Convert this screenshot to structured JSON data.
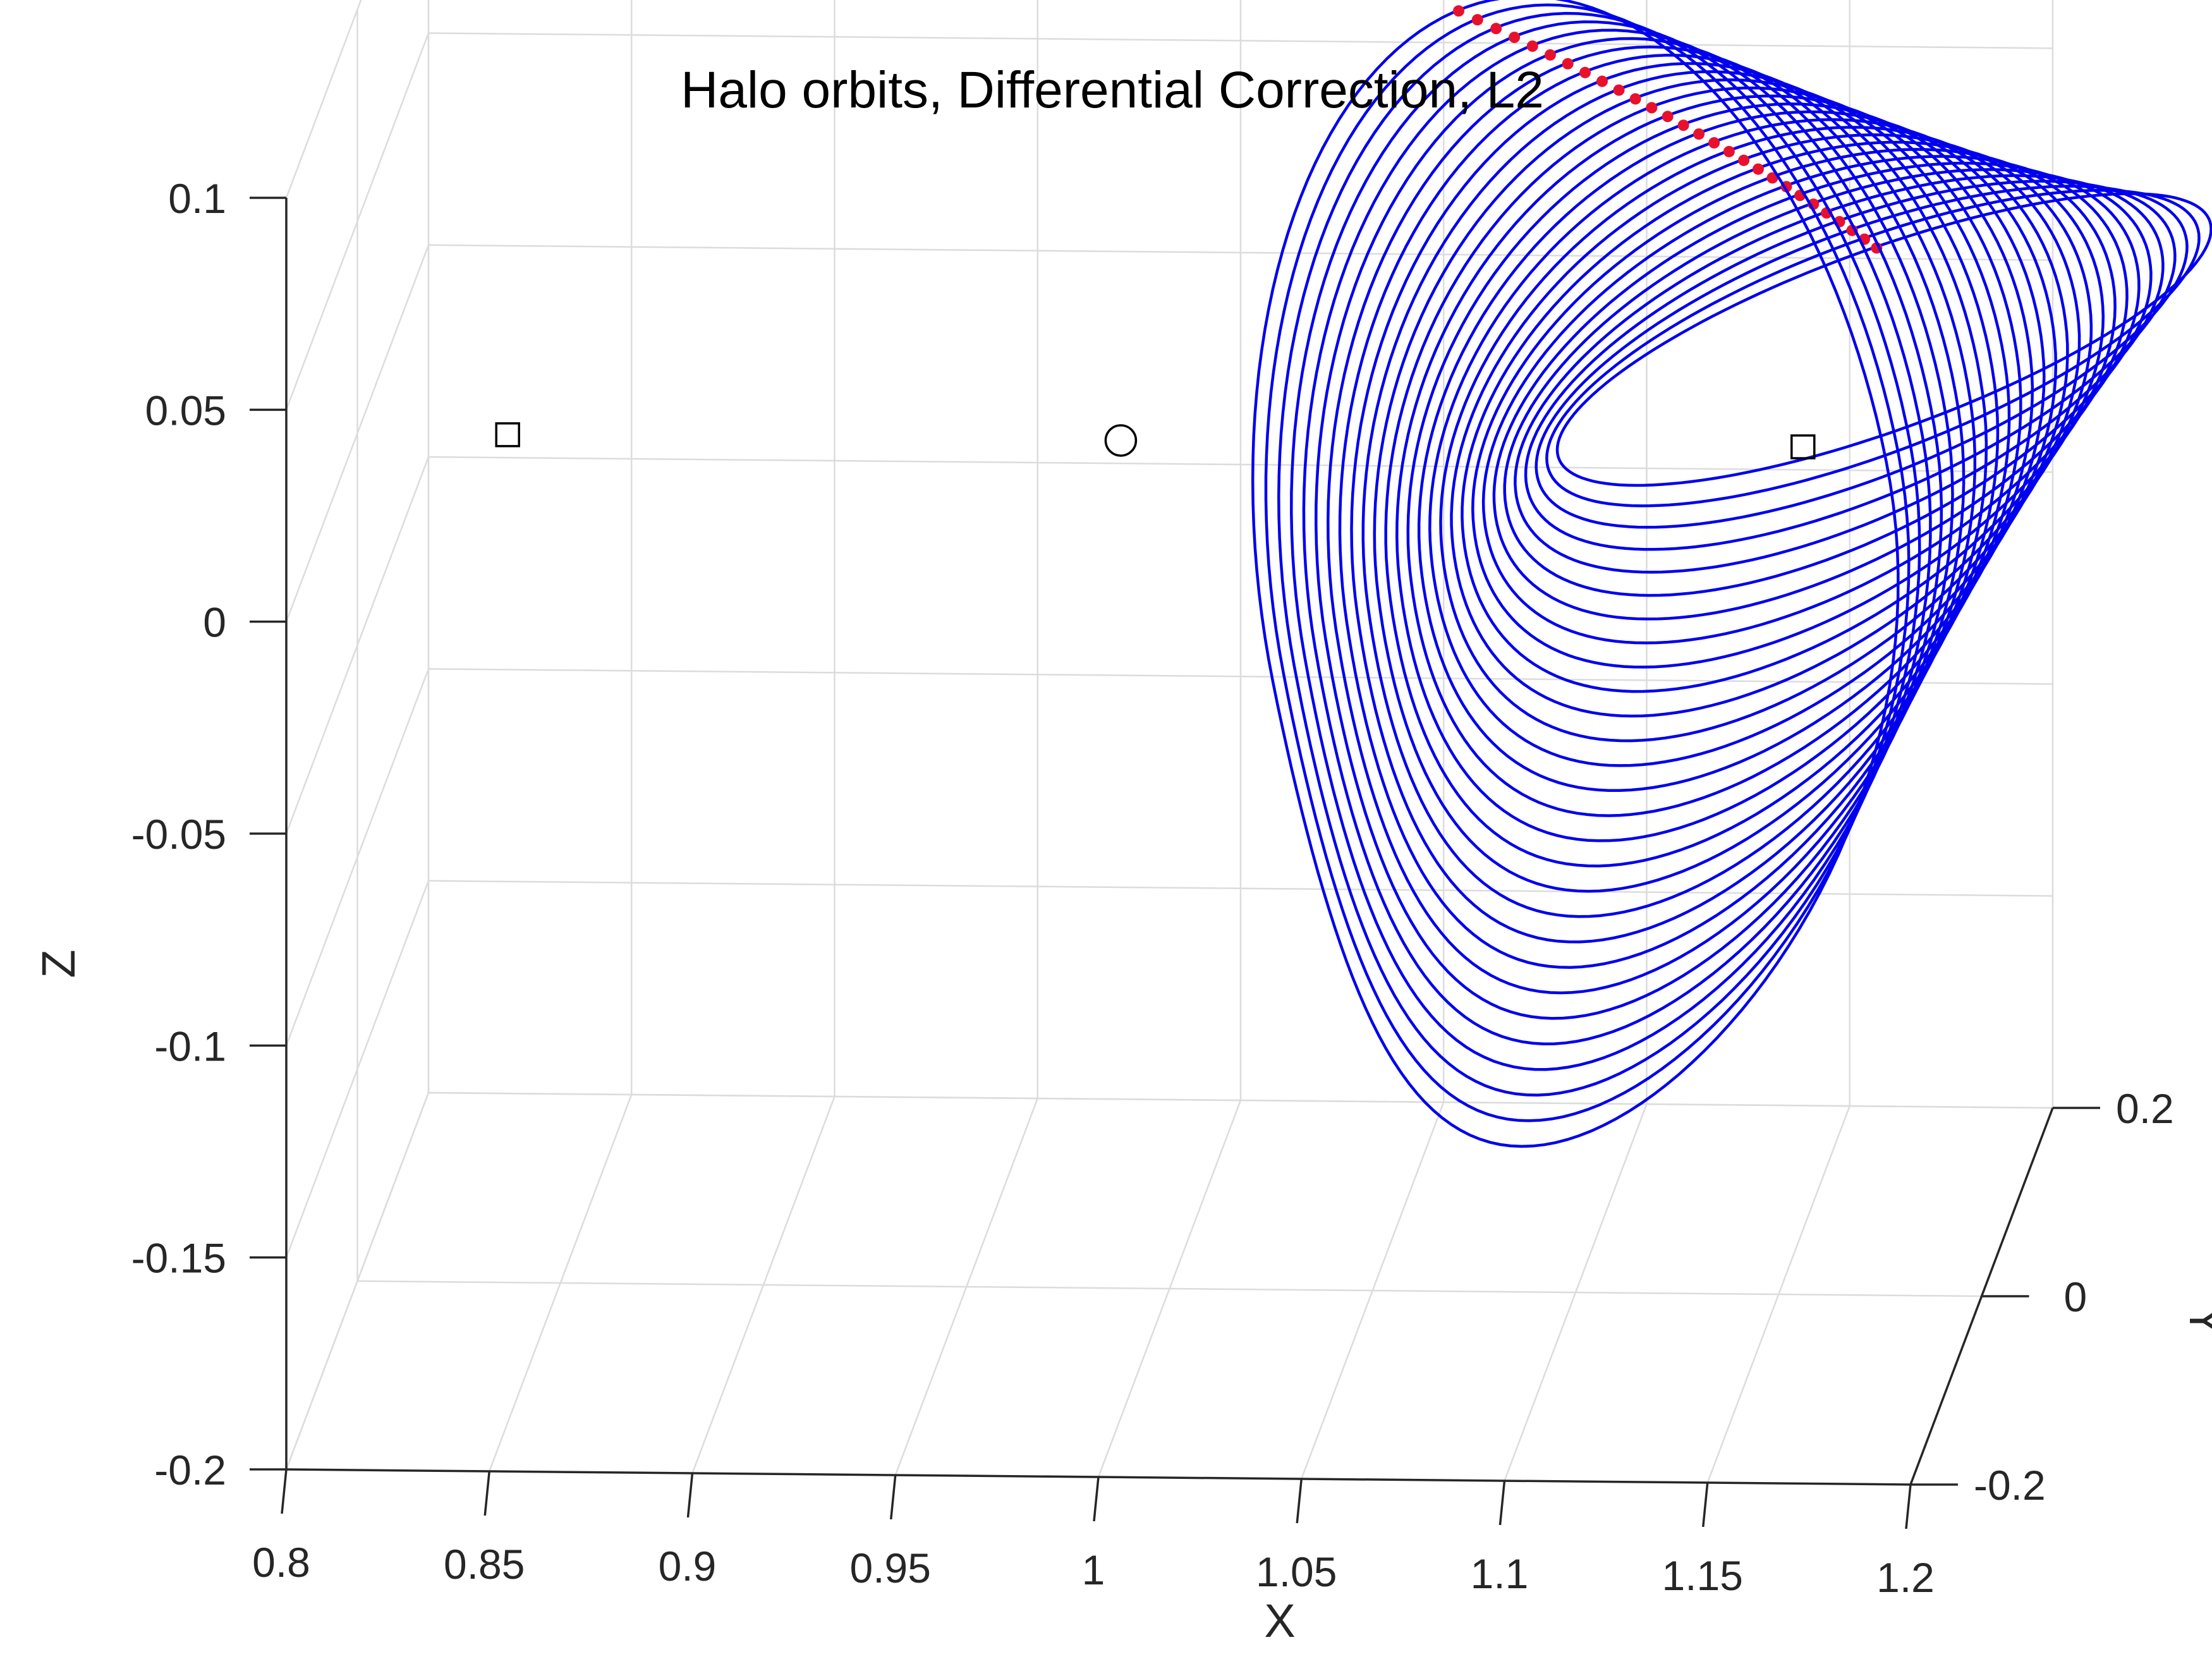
{
  "chart_data": {
    "type": "line3d",
    "title": "Halo orbits, Differential Correction, L2",
    "xlabel": "X",
    "ylabel": "Y",
    "zlabel": "Z",
    "xlim": [
      0.8,
      1.2
    ],
    "ylim": [
      -0.2,
      0.2
    ],
    "zlim": [
      -0.2,
      0.1
    ],
    "x_ticks": [
      {
        "value": 0.8,
        "label": "0.8"
      },
      {
        "value": 0.85,
        "label": "0.85"
      },
      {
        "value": 0.9,
        "label": "0.9"
      },
      {
        "value": 0.95,
        "label": "0.95"
      },
      {
        "value": 1.0,
        "label": "1"
      },
      {
        "value": 1.05,
        "label": "1.05"
      },
      {
        "value": 1.1,
        "label": "1.1"
      },
      {
        "value": 1.15,
        "label": "1.15"
      },
      {
        "value": 1.2,
        "label": "1.2"
      }
    ],
    "y_ticks": [
      {
        "value": -0.2,
        "label": "-0.2"
      },
      {
        "value": 0.0,
        "label": "0"
      },
      {
        "value": 0.2,
        "label": "0.2"
      }
    ],
    "z_ticks": [
      {
        "value": 0.1,
        "label": "0.1"
      },
      {
        "value": 0.05,
        "label": "0.05"
      },
      {
        "value": 0.0,
        "label": "0"
      },
      {
        "value": -0.05,
        "label": "-0.05"
      },
      {
        "value": -0.1,
        "label": "-0.1"
      },
      {
        "value": -0.15,
        "label": "-0.15"
      },
      {
        "value": -0.2,
        "label": "-0.2"
      }
    ],
    "grid": true,
    "series": [
      {
        "type": "orbit-family",
        "count": 28,
        "color": "#0000ee",
        "first_orbit": {
          "x_center": 1.176,
          "z_top": 0.048,
          "z_bottom": 0.003,
          "x_half_width": 0.07
        },
        "last_orbit": {
          "x_center": 1.101,
          "z_top": 0.103,
          "z_bottom": -0.163,
          "x_half_width": 0.065
        }
      },
      {
        "type": "scatter",
        "color": "#e8112d",
        "label": "orbit start points"
      },
      {
        "type": "marker",
        "marker": "square",
        "points": [
          [
            0.837,
            0.0,
            0.0
          ],
          [
            1.156,
            0.0,
            0.0
          ]
        ]
      },
      {
        "type": "marker",
        "marker": "circle",
        "points": [
          [
            0.988,
            0.0,
            0.0
          ]
        ]
      }
    ]
  }
}
